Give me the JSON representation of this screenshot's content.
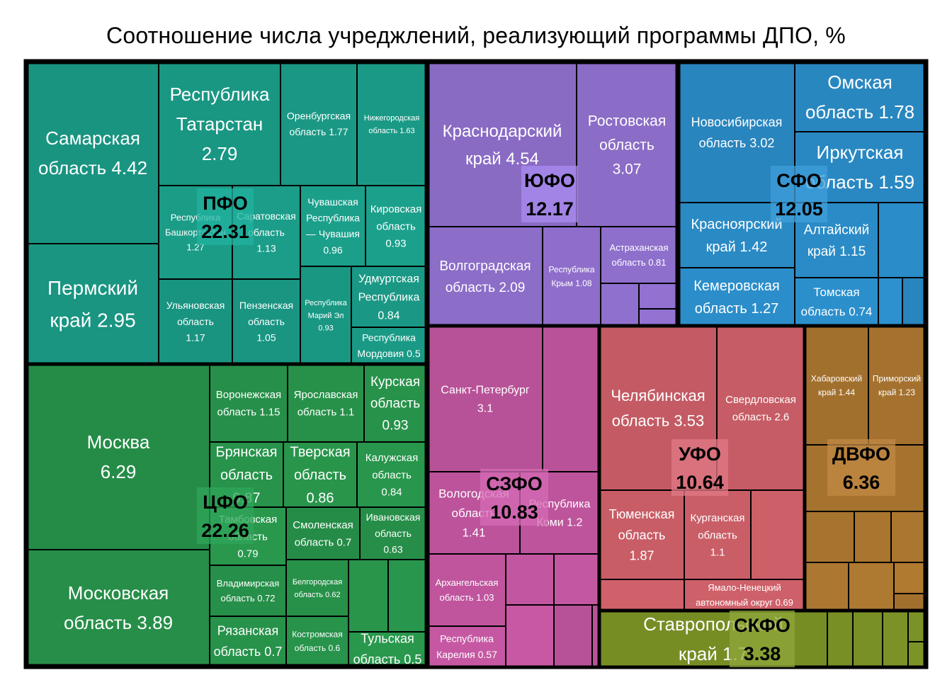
{
  "chart_data": {
    "type": "treemap",
    "title": "Соотношение числа учреджлений, реализующий программы ДПО, %",
    "regions": [
      {
        "name": "ПФО",
        "value": 22.31,
        "color": "#1a9a86",
        "items": [
          {
            "label": [
              "Самарская",
              "область 4.42"
            ],
            "value": 4.42
          },
          {
            "label": [
              "Пермский",
              "край 2.95"
            ],
            "value": 2.95
          },
          {
            "label": [
              "Республика",
              "Татарстан",
              "2.79"
            ],
            "value": 2.79
          },
          {
            "label": [
              "Оренбургская",
              "область 1.77"
            ],
            "value": 1.77
          },
          {
            "label": [
              "Нижегородская",
              "область 1.63"
            ],
            "value": 1.63
          },
          {
            "label": [
              "Республика",
              "Башкортостан",
              "1.27"
            ],
            "value": 1.27
          },
          {
            "label": [
              "Саратовская",
              "область",
              "1.13"
            ],
            "value": 1.13
          },
          {
            "label": [
              "Чувашская",
              "Республика",
              "— Чувашия",
              "0.96"
            ],
            "value": 0.96
          },
          {
            "label": [
              "Кировская",
              "область",
              "0.93"
            ],
            "value": 0.93
          },
          {
            "label": [
              "Ульяновская",
              "область",
              "1.17"
            ],
            "value": 1.17
          },
          {
            "label": [
              "Пензенская",
              "область",
              "1.05"
            ],
            "value": 1.05
          },
          {
            "label": [
              "Республика",
              "Марий Эл",
              "0.93"
            ],
            "value": 0.93
          },
          {
            "label": [
              "Удмуртская",
              "Республика",
              "0.84"
            ],
            "value": 0.84
          },
          {
            "label": [
              "Республика",
              "Мордовия 0.5"
            ],
            "value": 0.5
          }
        ]
      },
      {
        "name": "ЮФО",
        "value": 12.17,
        "color": "#8f6fcc",
        "items": [
          {
            "label": [
              "Краснодарский",
              "край 4.54"
            ],
            "value": 4.54
          },
          {
            "label": [
              "Ростовская",
              "область",
              "3.07"
            ],
            "value": 3.07
          },
          {
            "label": [
              "Волгоградская",
              "область 2.09"
            ],
            "value": 2.09
          },
          {
            "label": [
              "Республика",
              "Крым 1.08"
            ],
            "value": 1.08
          },
          {
            "label": [
              "Астраханская",
              "область 0.81"
            ],
            "value": 0.81
          }
        ]
      },
      {
        "name": "СФО",
        "value": 12.05,
        "color": "#2a8bc6",
        "items": [
          {
            "label": [
              "Новосибирская",
              "область 3.02"
            ],
            "value": 3.02
          },
          {
            "label": [
              "Омская",
              "область 1.78"
            ],
            "value": 1.78
          },
          {
            "label": [
              "Иркутская",
              "область 1.59"
            ],
            "value": 1.59
          },
          {
            "label": [
              "Красноярский",
              "край 1.42"
            ],
            "value": 1.42
          },
          {
            "label": [
              "Алтайский",
              "край 1.15"
            ],
            "value": 1.15
          },
          {
            "label": [
              "Кемеровская",
              "область 1.27"
            ],
            "value": 1.27
          },
          {
            "label": [
              "Томская",
              "область 0.74"
            ],
            "value": 0.74
          }
        ]
      },
      {
        "name": "ЦФО",
        "value": 22.26,
        "color": "#27924a",
        "items": [
          {
            "label": [
              "Москва",
              "6.29"
            ],
            "value": 6.29
          },
          {
            "label": [
              "Московская",
              "область 3.89"
            ],
            "value": 3.89
          },
          {
            "label": [
              "Воронежская",
              "область 1.15"
            ],
            "value": 1.15
          },
          {
            "label": [
              "Ярославская",
              "область 1.1"
            ],
            "value": 1.1
          },
          {
            "label": [
              "Курская",
              "область",
              "0.93"
            ],
            "value": 0.93
          },
          {
            "label": [
              "Брянская",
              "область",
              "0.87"
            ],
            "value": 0.87
          },
          {
            "label": [
              "Тверская",
              "область",
              "0.86"
            ],
            "value": 0.86
          },
          {
            "label": [
              "Калужская",
              "область",
              "0.84"
            ],
            "value": 0.84
          },
          {
            "label": [
              "Тамбовская",
              "область",
              "0.79"
            ],
            "value": 0.79
          },
          {
            "label": [
              "Смоленская",
              "область 0.7"
            ],
            "value": 0.7
          },
          {
            "label": [
              "Ивановская",
              "область",
              "0.63"
            ],
            "value": 0.63
          },
          {
            "label": [
              "Владимирская",
              "область 0.72"
            ],
            "value": 0.72
          },
          {
            "label": [
              "Белгородская",
              "область 0.62"
            ],
            "value": 0.62
          },
          {
            "label": [
              "Рязанская",
              "область 0.7"
            ],
            "value": 0.7
          },
          {
            "label": [
              "Костромская",
              "область 0.6"
            ],
            "value": 0.6
          },
          {
            "label": [
              "Тульская",
              "область 0.5"
            ],
            "value": 0.5
          }
        ]
      },
      {
        "name": "СЗФО",
        "value": 10.83,
        "color": "#c0559e",
        "items": [
          {
            "label": [
              "Санкт-Петербург",
              "3.1"
            ],
            "value": 3.1
          },
          {
            "label": [
              "Вологодская",
              "область",
              "1.41"
            ],
            "value": 1.41
          },
          {
            "label": [
              "Республика",
              "Коми 1.2"
            ],
            "value": 1.2
          },
          {
            "label": [
              "Архангельская",
              "область 1.03"
            ],
            "value": 1.03
          },
          {
            "label": [
              "Республика",
              "Карелия 0.57"
            ],
            "value": 0.57
          }
        ]
      },
      {
        "name": "УФО",
        "value": 10.64,
        "color": "#cc5f68",
        "items": [
          {
            "label": [
              "Челябинская",
              "область 3.53"
            ],
            "value": 3.53
          },
          {
            "label": [
              "Свердловская",
              "область 2.6"
            ],
            "value": 2.6
          },
          {
            "label": [
              "Тюменская",
              "область",
              "1.87"
            ],
            "value": 1.87
          },
          {
            "label": [
              "Курганская",
              "область",
              "1.1"
            ],
            "value": 1.1
          },
          {
            "label": [
              "Ямало-Ненецкий",
              "автономный округ 0.69"
            ],
            "value": 0.69
          }
        ]
      },
      {
        "name": "ДВФО",
        "value": 6.36,
        "color": "#a9752f",
        "items": [
          {
            "label": [
              "Хабаровский",
              "край 1.44"
            ],
            "value": 1.44
          },
          {
            "label": [
              "Приморский",
              "край 1.23"
            ],
            "value": 1.23
          }
        ]
      },
      {
        "name": "СКФО",
        "value": 3.38,
        "color": "#7b9326",
        "items": [
          {
            "label": [
              "Ставропольский",
              "край 1.7"
            ],
            "value": 1.7
          }
        ]
      }
    ]
  }
}
